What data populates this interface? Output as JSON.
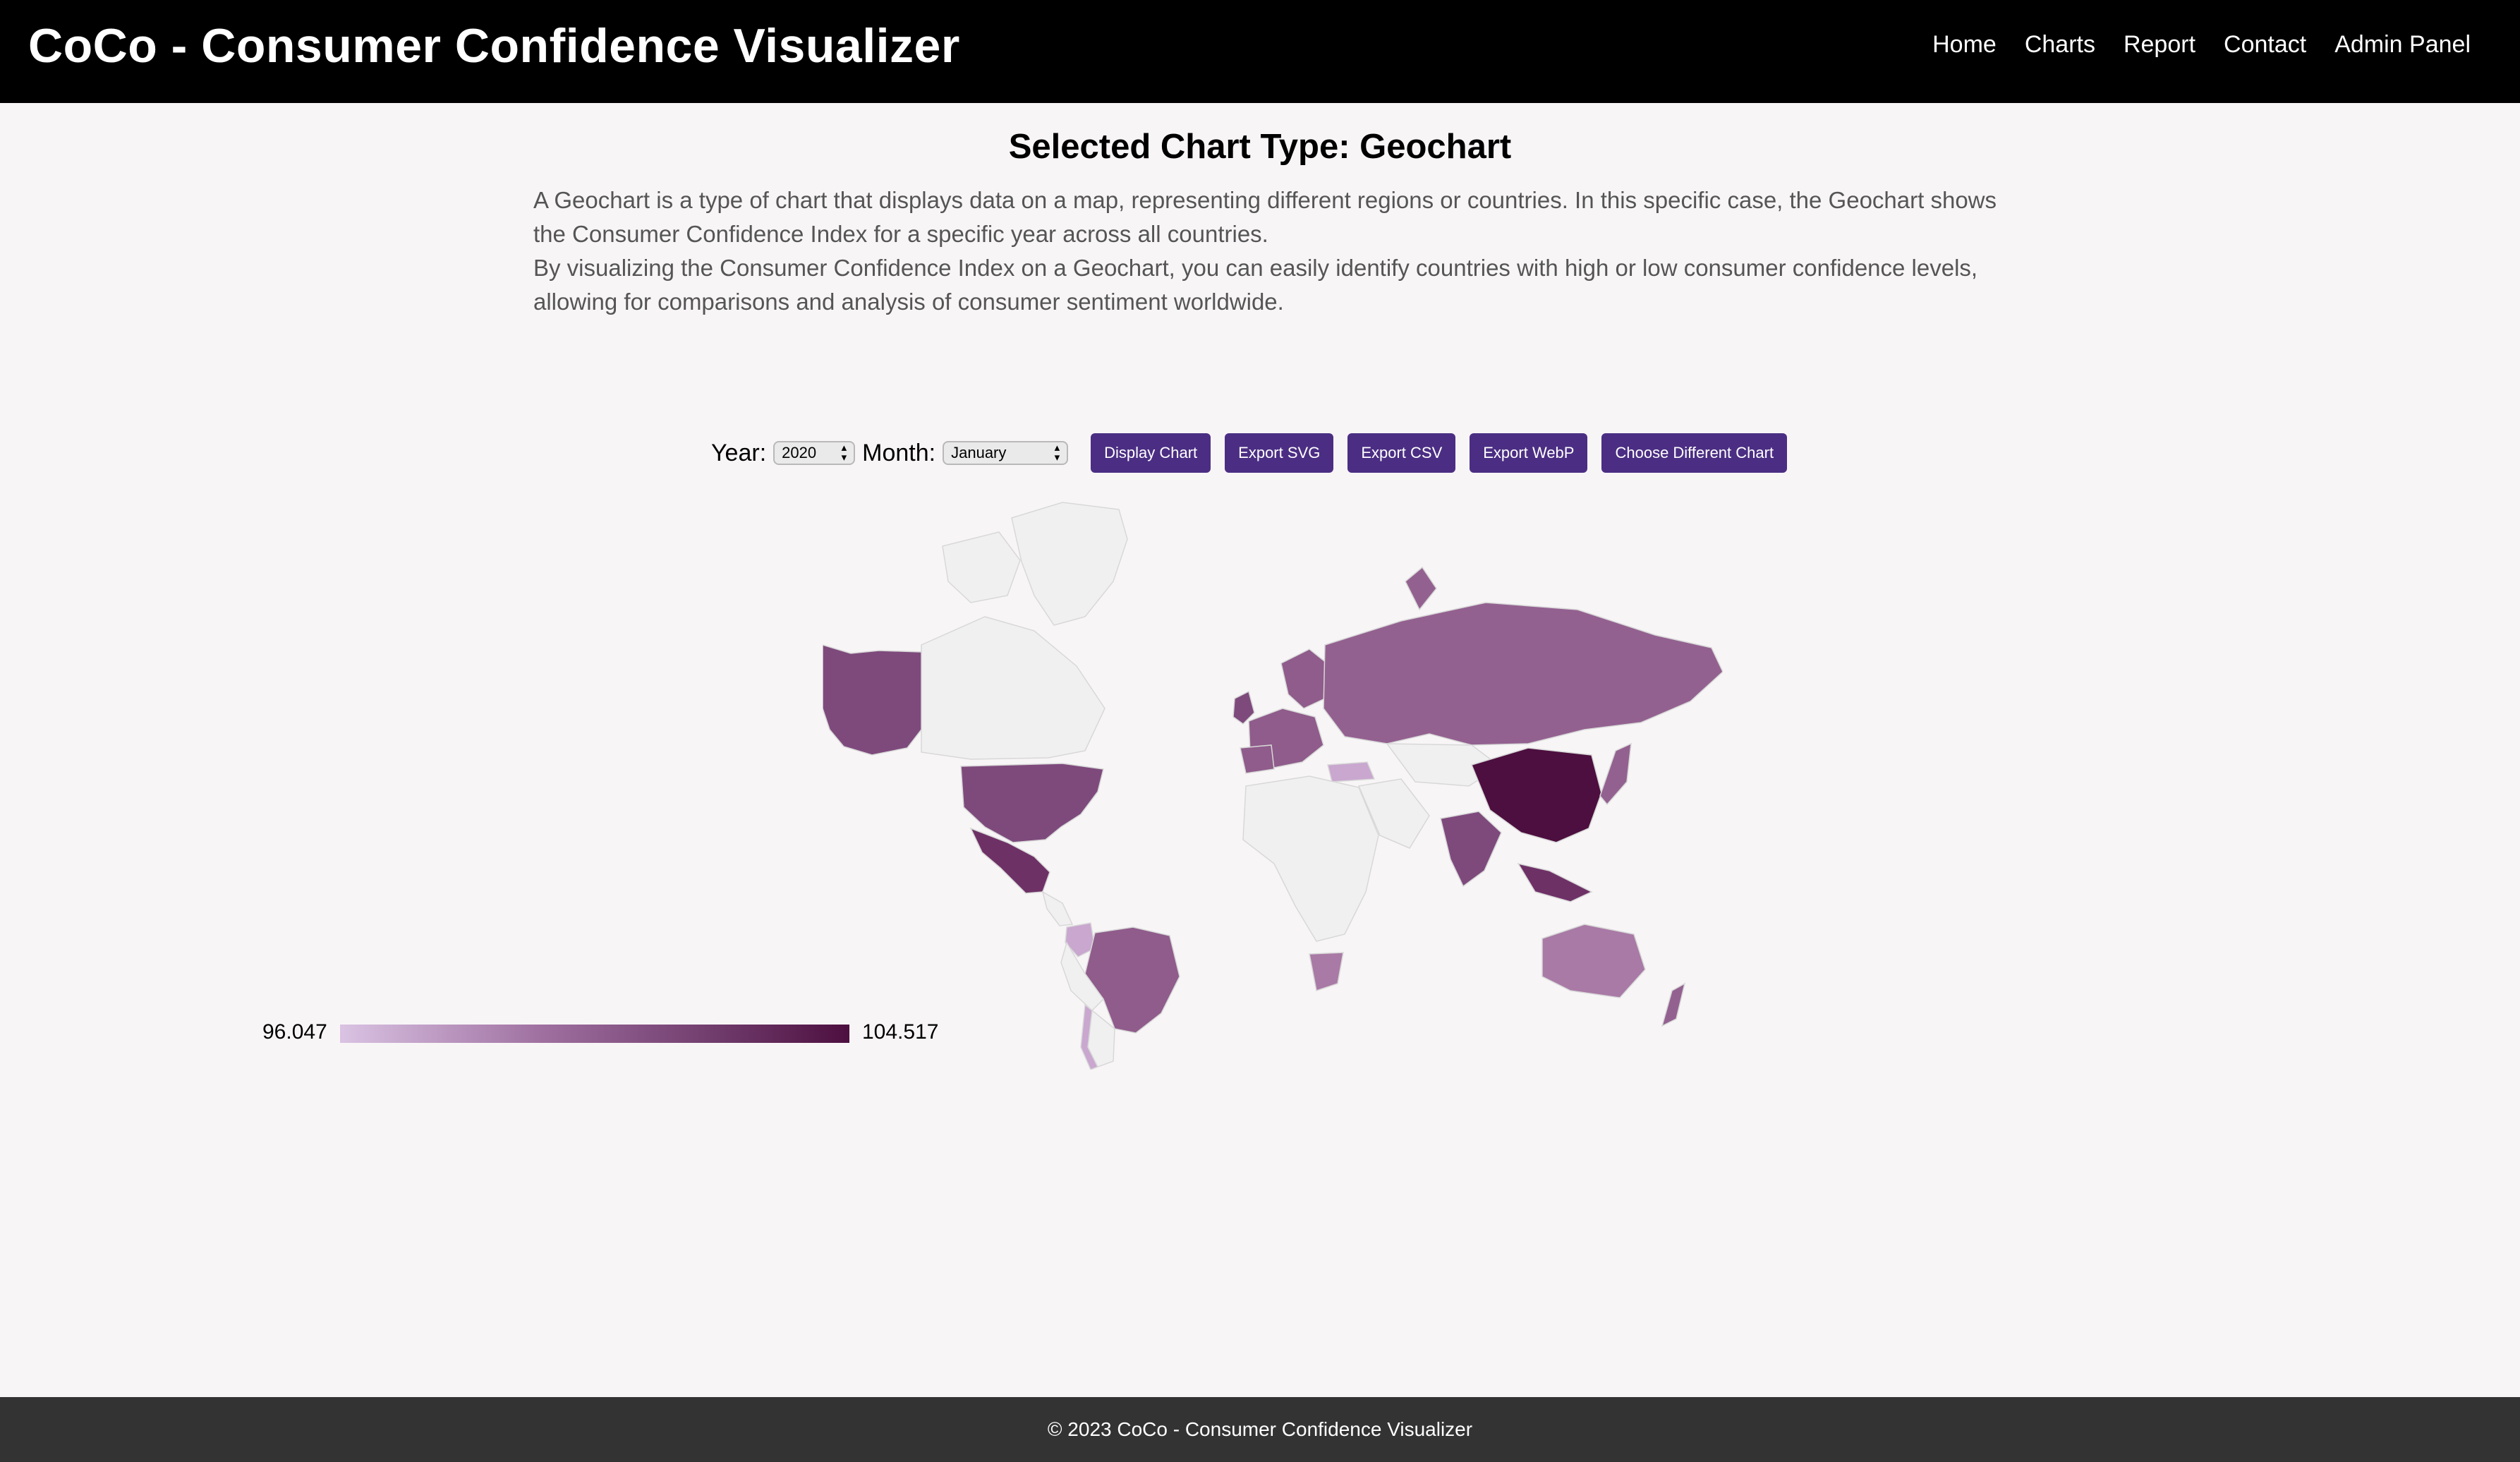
{
  "header": {
    "brand": "CoCo - Consumer Confidence Visualizer",
    "nav": [
      "Home",
      "Charts",
      "Report",
      "Contact",
      "Admin Panel"
    ]
  },
  "main": {
    "heading": "Selected Chart Type: Geochart",
    "description": [
      "A Geochart is a type of chart that displays data on a map, representing different regions or countries. In this specific case, the Geochart shows the Consumer Confidence Index for a specific year across all countries.",
      "By visualizing the Consumer Confidence Index on a Geochart, you can easily identify countries with high or low consumer confidence levels, allowing for comparisons and analysis of consumer sentiment worldwide."
    ]
  },
  "controls": {
    "year_label": "Year:",
    "year_value": "2020",
    "month_label": "Month:",
    "month_value": "January",
    "buttons": [
      "Display Chart",
      "Export SVG",
      "Export CSV",
      "Export WebP",
      "Choose Different Chart"
    ]
  },
  "legend": {
    "min": "96.047",
    "max": "104.517"
  },
  "colors": {
    "accent": "#4b2e83",
    "scale_low": "#dac3e3",
    "scale_high": "#4d0f3f",
    "no_data": "#f0f0f0"
  },
  "footer": {
    "text": "© 2023 CoCo - Consumer Confidence Visualizer"
  }
}
